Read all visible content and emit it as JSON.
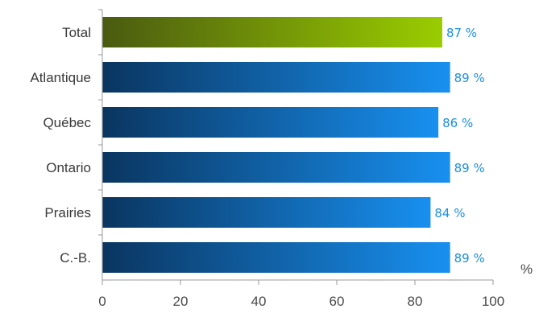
{
  "chart_data": {
    "type": "bar",
    "orientation": "horizontal",
    "categories": [
      "Total",
      "Atlantique",
      "Québec",
      "Ontario",
      "Prairies",
      "C.-B."
    ],
    "values": [
      87,
      89,
      86,
      89,
      84,
      89
    ],
    "data_labels": [
      "87 %",
      "89 %",
      "86 %",
      "89 %",
      "84 %",
      "89 %"
    ],
    "xlim": [
      0,
      100
    ],
    "x_ticks": [
      "0",
      "20",
      "40",
      "60",
      "80",
      "100"
    ],
    "x_unit": "%",
    "grid": false,
    "legend": "none",
    "colors": {
      "highlight_start": "#4a5a10",
      "highlight_end": "#9acd00",
      "bar_start": "#0a3560",
      "bar_end": "#1890f0",
      "data_label": "#1a8fe0"
    }
  }
}
